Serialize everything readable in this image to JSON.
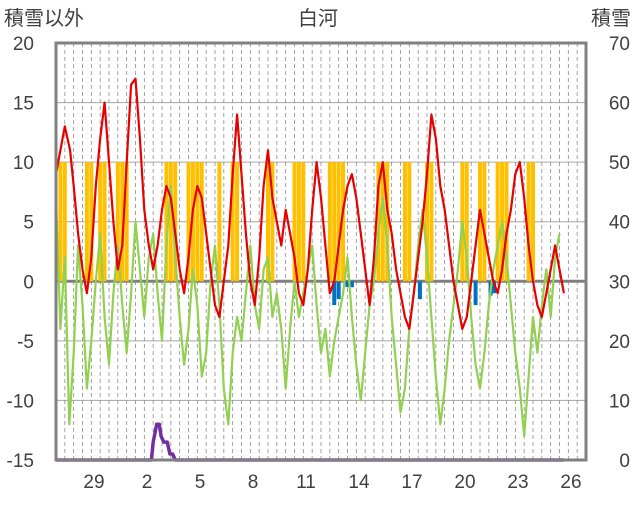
{
  "chart_data": {
    "type": "line",
    "title": "白河",
    "left_axis_label": "積雪以外",
    "right_axis_label": "積雪",
    "y_left": {
      "range": [
        -15,
        20
      ],
      "ticks": [
        -15,
        -10,
        -5,
        0,
        5,
        10,
        15,
        20
      ]
    },
    "y_right": {
      "range": [
        0,
        70
      ],
      "ticks": [
        0,
        10,
        20,
        30,
        40,
        50,
        60,
        70
      ]
    },
    "x_axis": {
      "range": [
        0,
        60
      ],
      "tick_labels": [
        "29",
        "2",
        "5",
        "8",
        "11",
        "14",
        "17",
        "20",
        "23",
        "26"
      ]
    },
    "grid": true,
    "series": [
      {
        "key": "red",
        "axis": "left",
        "color": "#e60000",
        "points": [
          [
            0,
            9
          ],
          [
            0.5,
            11
          ],
          [
            1,
            13
          ],
          [
            1.6,
            11
          ],
          [
            2,
            8
          ],
          [
            2.5,
            4
          ],
          [
            3,
            1
          ],
          [
            3.5,
            -1
          ],
          [
            4,
            2
          ],
          [
            4.5,
            8
          ],
          [
            5,
            12
          ],
          [
            5.5,
            15
          ],
          [
            6,
            10
          ],
          [
            6.5,
            5
          ],
          [
            7,
            1
          ],
          [
            7.5,
            3
          ],
          [
            8,
            10
          ],
          [
            8.5,
            16.5
          ],
          [
            9,
            17
          ],
          [
            9.5,
            12
          ],
          [
            10,
            6
          ],
          [
            10.5,
            3
          ],
          [
            11,
            1
          ],
          [
            11.5,
            3
          ],
          [
            12,
            6
          ],
          [
            12.5,
            8
          ],
          [
            13,
            7
          ],
          [
            13.5,
            4
          ],
          [
            14,
            1
          ],
          [
            14.5,
            -1
          ],
          [
            15,
            2
          ],
          [
            15.5,
            6
          ],
          [
            16,
            8
          ],
          [
            16.5,
            7
          ],
          [
            17,
            4
          ],
          [
            17.5,
            1
          ],
          [
            18,
            -2
          ],
          [
            18.5,
            -3
          ],
          [
            19,
            0
          ],
          [
            19.5,
            3
          ],
          [
            20,
            9
          ],
          [
            20.5,
            14
          ],
          [
            21,
            9
          ],
          [
            21.5,
            4
          ],
          [
            22,
            0
          ],
          [
            22.5,
            -2
          ],
          [
            23,
            2
          ],
          [
            23.5,
            8
          ],
          [
            24,
            11
          ],
          [
            24.5,
            7
          ],
          [
            25,
            5
          ],
          [
            25.5,
            3
          ],
          [
            26,
            6
          ],
          [
            26.5,
            4
          ],
          [
            27,
            2
          ],
          [
            27.5,
            -1
          ],
          [
            28,
            -2
          ],
          [
            28.5,
            1
          ],
          [
            29,
            6
          ],
          [
            29.5,
            10
          ],
          [
            30,
            7
          ],
          [
            30.5,
            3
          ],
          [
            31,
            -1
          ],
          [
            31.5,
            0
          ],
          [
            32,
            3
          ],
          [
            32.5,
            6
          ],
          [
            33,
            8
          ],
          [
            33.5,
            9
          ],
          [
            34,
            7
          ],
          [
            34.5,
            4
          ],
          [
            35,
            1
          ],
          [
            35.5,
            -2
          ],
          [
            36,
            2
          ],
          [
            36.5,
            8
          ],
          [
            37,
            10
          ],
          [
            37.5,
            6
          ],
          [
            38,
            4
          ],
          [
            38.5,
            1
          ],
          [
            39,
            -1
          ],
          [
            39.5,
            -3
          ],
          [
            40,
            -4
          ],
          [
            40.5,
            -1
          ],
          [
            41,
            2
          ],
          [
            41.5,
            5
          ],
          [
            42,
            9
          ],
          [
            42.5,
            14
          ],
          [
            43,
            12
          ],
          [
            43.5,
            8
          ],
          [
            44,
            6
          ],
          [
            44.5,
            3
          ],
          [
            45,
            0
          ],
          [
            45.5,
            -2
          ],
          [
            46,
            -4
          ],
          [
            46.5,
            -3
          ],
          [
            47,
            0
          ],
          [
            47.5,
            3
          ],
          [
            48,
            6
          ],
          [
            48.5,
            4
          ],
          [
            49,
            2
          ],
          [
            49.5,
            0
          ],
          [
            50,
            -1
          ],
          [
            50.5,
            1
          ],
          [
            51,
            4
          ],
          [
            51.5,
            6
          ],
          [
            52,
            9
          ],
          [
            52.5,
            10
          ],
          [
            53,
            7
          ],
          [
            53.5,
            3
          ],
          [
            54,
            0
          ],
          [
            54.5,
            -2
          ],
          [
            55,
            -3
          ],
          [
            55.5,
            -1
          ],
          [
            56,
            1
          ],
          [
            56.5,
            3
          ],
          [
            57,
            1
          ],
          [
            57.5,
            -1
          ]
        ]
      },
      {
        "key": "green",
        "axis": "left",
        "color": "#92d050",
        "points": [
          [
            0,
            7
          ],
          [
            0.5,
            -4
          ],
          [
            1,
            2
          ],
          [
            1.5,
            -12
          ],
          [
            2,
            -6
          ],
          [
            2.5,
            3
          ],
          [
            3,
            -2
          ],
          [
            3.5,
            -9
          ],
          [
            4,
            -5
          ],
          [
            4.5,
            0
          ],
          [
            5,
            4
          ],
          [
            5.5,
            -3
          ],
          [
            6,
            -7
          ],
          [
            6.5,
            -1
          ],
          [
            7,
            3
          ],
          [
            7.5,
            -2
          ],
          [
            8,
            -6
          ],
          [
            8.5,
            -1
          ],
          [
            9,
            5
          ],
          [
            9.5,
            1
          ],
          [
            10,
            -3
          ],
          [
            10.5,
            2
          ],
          [
            11,
            4
          ],
          [
            11.5,
            -1
          ],
          [
            12,
            -5
          ],
          [
            12.5,
            3
          ],
          [
            13,
            8
          ],
          [
            13.5,
            2
          ],
          [
            14,
            -3
          ],
          [
            14.5,
            -7
          ],
          [
            15,
            -4
          ],
          [
            15.5,
            1
          ],
          [
            16,
            -2
          ],
          [
            16.5,
            -8
          ],
          [
            17,
            -6
          ],
          [
            17.5,
            0
          ],
          [
            18,
            3
          ],
          [
            18.5,
            -2
          ],
          [
            19,
            -9
          ],
          [
            19.5,
            -12
          ],
          [
            20,
            -6
          ],
          [
            20.5,
            -3
          ],
          [
            21,
            -5
          ],
          [
            21.5,
            -1
          ],
          [
            22,
            3
          ],
          [
            22.5,
            -2
          ],
          [
            23,
            -4
          ],
          [
            23.5,
            1
          ],
          [
            24,
            2
          ],
          [
            24.5,
            -3
          ],
          [
            25,
            -1
          ],
          [
            25.5,
            -4
          ],
          [
            26,
            -9
          ],
          [
            26.5,
            -4
          ],
          [
            27,
            0
          ],
          [
            27.5,
            -3
          ],
          [
            28,
            -1
          ],
          [
            28.5,
            1
          ],
          [
            29,
            3
          ],
          [
            29.5,
            -2
          ],
          [
            30,
            -6
          ],
          [
            30.5,
            -4
          ],
          [
            31,
            -8
          ],
          [
            31.5,
            -5
          ],
          [
            32,
            -3
          ],
          [
            32.5,
            -1
          ],
          [
            33,
            2
          ],
          [
            33.5,
            -3
          ],
          [
            34,
            -7
          ],
          [
            34.5,
            -10
          ],
          [
            35,
            -6
          ],
          [
            35.5,
            -2
          ],
          [
            36,
            0
          ],
          [
            36.5,
            4
          ],
          [
            37,
            7
          ],
          [
            37.5,
            3
          ],
          [
            38,
            -3
          ],
          [
            38.5,
            -7
          ],
          [
            39,
            -11
          ],
          [
            39.5,
            -9
          ],
          [
            40,
            -4
          ],
          [
            40.5,
            -1
          ],
          [
            41,
            3
          ],
          [
            41.5,
            6
          ],
          [
            42,
            2
          ],
          [
            42.5,
            -3
          ],
          [
            43,
            -8
          ],
          [
            43.5,
            -12
          ],
          [
            44,
            -9
          ],
          [
            44.5,
            -5
          ],
          [
            45,
            -2
          ],
          [
            45.5,
            1
          ],
          [
            46,
            5
          ],
          [
            46.5,
            2
          ],
          [
            47,
            -3
          ],
          [
            47.5,
            -7
          ],
          [
            48,
            -9
          ],
          [
            48.5,
            -6
          ],
          [
            49,
            -2
          ],
          [
            49.5,
            1
          ],
          [
            50,
            3
          ],
          [
            50.5,
            5
          ],
          [
            51,
            2
          ],
          [
            51.5,
            -2
          ],
          [
            52,
            -6
          ],
          [
            52.5,
            -9
          ],
          [
            53,
            -13
          ],
          [
            53.5,
            -8
          ],
          [
            54,
            -3
          ],
          [
            54.5,
            -6
          ],
          [
            55,
            -2
          ],
          [
            55.5,
            1
          ],
          [
            56,
            -3
          ],
          [
            56.5,
            2
          ],
          [
            57,
            4
          ]
        ]
      },
      {
        "key": "purple",
        "axis": "right",
        "color": "#7030a0",
        "points": [
          [
            0,
            0
          ],
          [
            10.8,
            0
          ],
          [
            11,
            3
          ],
          [
            11.4,
            6
          ],
          [
            11.7,
            6
          ],
          [
            11.9,
            4
          ],
          [
            12.2,
            3
          ],
          [
            12.6,
            3
          ],
          [
            12.9,
            1
          ],
          [
            13.2,
            1
          ],
          [
            13.5,
            0
          ],
          [
            57.5,
            0
          ]
        ]
      }
    ],
    "bars": [
      {
        "key": "orange",
        "axis": "left",
        "color": "#ffc000",
        "x": [
          0.5,
          1,
          3.5,
          4,
          5,
          5.5,
          7,
          7.5,
          8,
          12.5,
          13,
          13.5,
          15,
          15.5,
          16,
          16.5,
          18.5,
          20,
          20.5,
          24,
          24.5,
          27,
          27.5,
          28,
          31,
          31.5,
          32,
          32.5,
          36.5,
          37,
          37.5,
          39.5,
          40,
          42,
          42.5,
          46,
          46.5,
          48,
          48.5,
          50,
          50.5,
          51,
          53.5,
          54
        ],
        "values": [
          10,
          10,
          10,
          10,
          10,
          10,
          10,
          10,
          10,
          10,
          10,
          10,
          10,
          10,
          10,
          10,
          10,
          10,
          10,
          10,
          10,
          10,
          10,
          10,
          10,
          10,
          10,
          10,
          10,
          10,
          10,
          10,
          10,
          10,
          10,
          10,
          10,
          10,
          10,
          10,
          10,
          10,
          10,
          10
        ]
      },
      {
        "key": "blue",
        "axis": "left",
        "color": "#0070c0",
        "x": [
          31.5,
          32,
          33,
          33.5,
          41.2,
          47.5,
          49.2,
          49.6
        ],
        "values": [
          -2,
          -1.5,
          -0.5,
          -0.5,
          -1.5,
          -2,
          -1.2,
          -1
        ]
      }
    ]
  }
}
